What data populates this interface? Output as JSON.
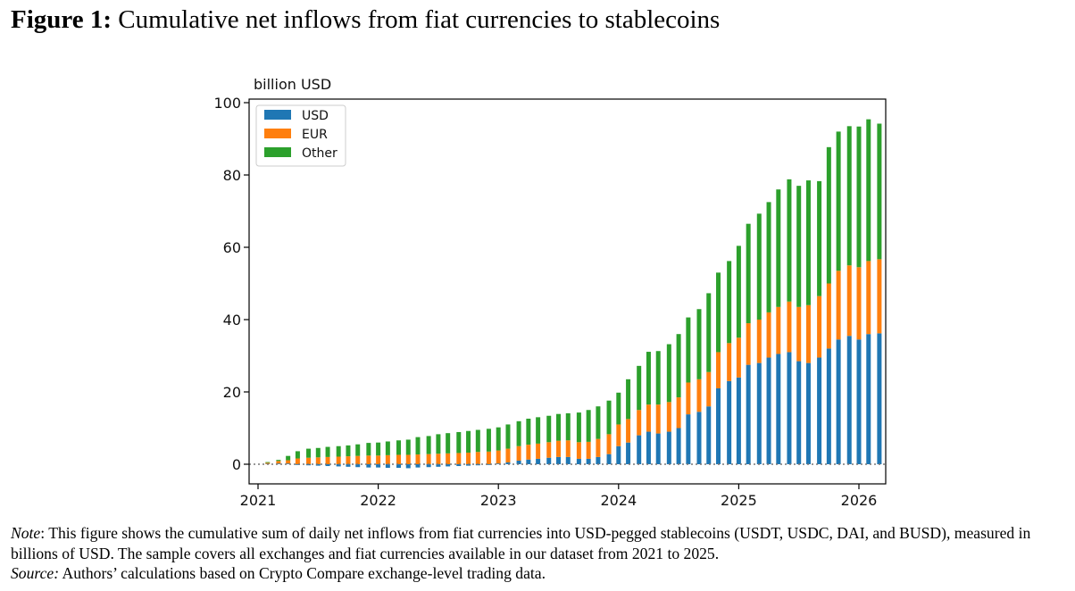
{
  "figure": {
    "label": "Figure 1:",
    "caption": "Cumulative net inflows from fiat currencies to stablecoins"
  },
  "note": {
    "label": "Note",
    "text": ": This figure shows the cumulative sum of daily net inflows from fiat currencies into USD-pegged stablecoins (USDT, USDC, DAI, and BUSD), measured in billions of USD. The sample covers all exchanges and fiat currencies available in our dataset from 2021 to 2025.",
    "source_label": "Source:",
    "source_text": " Authors’ calculations based on Crypto Compare exchange-level trading data."
  },
  "colors": {
    "USD": "#1f77b4",
    "EUR": "#ff7f0e",
    "Other": "#2ca02c"
  },
  "chart_data": {
    "type": "bar",
    "stacked": true,
    "title": "",
    "xlabel": "",
    "ylabel": "billion USD",
    "ylim": [
      -6,
      101
    ],
    "xlim": [
      2021.0,
      2026.2
    ],
    "xticks": [
      2021,
      2022,
      2023,
      2024,
      2025,
      2026
    ],
    "yticks": [
      0,
      20,
      40,
      60,
      80,
      100
    ],
    "legend": {
      "position": "top-left",
      "entries": [
        "USD",
        "EUR",
        "Other"
      ]
    },
    "zero_line": "dotted",
    "x": [
      2021.08,
      2021.17,
      2021.25,
      2021.33,
      2021.42,
      2021.5,
      2021.58,
      2021.67,
      2021.75,
      2021.83,
      2021.92,
      2022.0,
      2022.08,
      2022.17,
      2022.25,
      2022.33,
      2022.42,
      2022.5,
      2022.58,
      2022.67,
      2022.75,
      2022.83,
      2022.92,
      2023.0,
      2023.08,
      2023.17,
      2023.25,
      2023.33,
      2023.42,
      2023.5,
      2023.58,
      2023.67,
      2023.75,
      2023.83,
      2023.92,
      2024.0,
      2024.08,
      2024.17,
      2024.25,
      2024.33,
      2024.42,
      2024.5,
      2024.58,
      2024.67,
      2024.75,
      2024.83,
      2024.92,
      2025.0,
      2025.08,
      2025.17,
      2025.25,
      2025.33,
      2025.42,
      2025.5,
      2025.58,
      2025.67,
      2025.75,
      2025.83,
      2025.92,
      2026.0,
      2026.08,
      2026.17
    ],
    "series": [
      {
        "name": "USD",
        "values": [
          0.1,
          0.2,
          0.2,
          -0.2,
          -0.3,
          -0.4,
          -0.5,
          -0.6,
          -0.7,
          -0.8,
          -0.9,
          -0.9,
          -1.0,
          -1.0,
          -1.1,
          -0.9,
          -0.8,
          -0.7,
          -0.6,
          -0.5,
          -0.4,
          -0.3,
          -0.2,
          0.2,
          0.5,
          1.0,
          1.3,
          1.5,
          1.8,
          2.0,
          2.0,
          1.5,
          1.5,
          2.0,
          2.8,
          5.0,
          6.0,
          8.0,
          9.0,
          8.5,
          9.0,
          10.0,
          13.8,
          14.5,
          16.0,
          21.0,
          23.0,
          24.0,
          27.5,
          28.0,
          29.5,
          30.5,
          31.0,
          28.5,
          28.0,
          29.5,
          32.0,
          34.5,
          35.5,
          34.5,
          36.0,
          36.2
        ]
      },
      {
        "name": "EUR",
        "values": [
          0.3,
          0.7,
          0.9,
          1.6,
          1.8,
          1.9,
          2.0,
          2.1,
          2.2,
          2.3,
          2.4,
          2.4,
          2.5,
          2.6,
          2.6,
          2.7,
          2.8,
          2.9,
          3.0,
          3.1,
          3.2,
          3.4,
          3.5,
          3.6,
          3.8,
          4.0,
          4.1,
          4.2,
          4.3,
          4.5,
          4.6,
          4.6,
          4.7,
          5.0,
          5.5,
          6.0,
          6.5,
          7.0,
          7.5,
          8.0,
          8.2,
          8.5,
          8.8,
          9.0,
          9.5,
          10.0,
          10.5,
          11.0,
          11.5,
          12.0,
          12.5,
          13.0,
          14.0,
          15.0,
          16.0,
          17.0,
          18.0,
          19.0,
          19.5,
          20.0,
          20.2,
          20.5
        ]
      },
      {
        "name": "Other",
        "values": [
          0.2,
          0.3,
          1.2,
          2.0,
          2.5,
          2.6,
          2.8,
          2.9,
          3.0,
          3.2,
          3.5,
          3.6,
          3.8,
          4.0,
          4.2,
          4.8,
          5.0,
          5.4,
          5.6,
          5.8,
          6.0,
          6.1,
          6.3,
          6.4,
          6.7,
          6.9,
          7.2,
          7.3,
          7.3,
          7.4,
          7.5,
          8.2,
          8.8,
          9.0,
          9.3,
          8.8,
          11.0,
          12.2,
          14.6,
          14.8,
          16.0,
          17.5,
          18.0,
          19.4,
          21.8,
          22.0,
          22.7,
          25.4,
          27.5,
          29.3,
          30.5,
          32.5,
          33.8,
          33.5,
          34.5,
          31.8,
          37.7,
          38.5,
          38.5,
          38.9,
          39.2,
          37.5
        ]
      }
    ]
  }
}
